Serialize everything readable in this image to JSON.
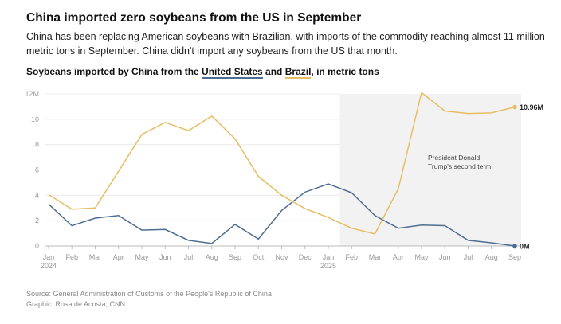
{
  "title": "China imported zero soybeans from the US in September",
  "subtitle": "China has been replacing American soybeans with Brazilian, with imports of the commodity reaching almost 11 million metric tons in September. China didn't import any soybeans from the US that month.",
  "chart_title": {
    "prefix": "Soybeans imported by China from the ",
    "us": "United States",
    "and": " and ",
    "brazil": "Brazil",
    "suffix": ", in metric tons"
  },
  "source": "Source: General Administration of Customs of the People's Republic of China",
  "graphic": "Graphic: Rosa de Acosta, CNN",
  "chart_data": {
    "type": "line",
    "x": [
      "Jan",
      "Feb",
      "Mar",
      "Apr",
      "May",
      "Jun",
      "Jul",
      "Aug",
      "Sep",
      "Oct",
      "Nov",
      "Dec",
      "Jan",
      "Feb",
      "Mar",
      "Apr",
      "May",
      "Jun",
      "Jul",
      "Aug",
      "Sep"
    ],
    "year_labels": {
      "0": "2024",
      "12": "2025"
    },
    "ylim": [
      0,
      12
    ],
    "yticks": [
      "0",
      "2",
      "4",
      "6",
      "8",
      "10",
      "12M"
    ],
    "series": [
      {
        "name": "United States",
        "color": "#4e6e91",
        "values": [
          3.3,
          1.6,
          2.2,
          2.4,
          1.25,
          1.3,
          0.45,
          0.2,
          1.7,
          0.55,
          2.8,
          4.25,
          4.9,
          4.2,
          2.4,
          1.4,
          1.65,
          1.6,
          0.45,
          0.25,
          0
        ],
        "end_label": "0M"
      },
      {
        "name": "Brazil",
        "color": "#e7bd62",
        "values": [
          4.05,
          2.9,
          3.0,
          5.9,
          8.8,
          9.75,
          9.1,
          10.25,
          8.45,
          5.5,
          4.0,
          2.95,
          2.25,
          1.4,
          0.95,
          4.5,
          12.1,
          10.65,
          10.45,
          10.5,
          10.96
        ],
        "end_label": "10.96M"
      }
    ],
    "annotation": {
      "text": [
        "President Donald",
        "Trump's second term"
      ],
      "start_index": 12.5
    }
  }
}
